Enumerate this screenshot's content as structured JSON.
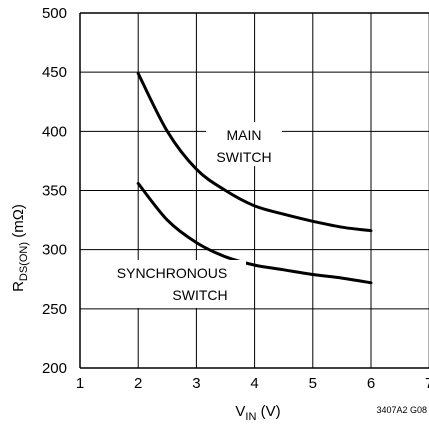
{
  "chart_data": {
    "type": "line",
    "xlabel": {
      "main": "V",
      "sub": "IN",
      "unit": " (V)"
    },
    "ylabel": {
      "main": "R",
      "sub": "DS(ON)",
      "unit": " (mΩ)"
    },
    "xlim": [
      1,
      7
    ],
    "ylim": [
      200,
      500
    ],
    "x_ticks": [
      1,
      2,
      3,
      4,
      5,
      6,
      7
    ],
    "y_ticks": [
      200,
      250,
      300,
      350,
      400,
      450,
      500
    ],
    "grid": true,
    "series": [
      {
        "name": "MAIN SWITCH",
        "x": [
          2,
          2.5,
          3,
          3.5,
          4,
          4.5,
          5,
          5.5,
          6
        ],
        "y": [
          449,
          400,
          368,
          350,
          337,
          330,
          324,
          319,
          316
        ]
      },
      {
        "name": "SYNCHRONOUS SWITCH",
        "x": [
          2,
          2.5,
          3,
          3.5,
          4,
          4.5,
          5,
          5.5,
          6
        ],
        "y": [
          356,
          325,
          306,
          294,
          287,
          283,
          279,
          276,
          272
        ]
      }
    ],
    "annotations": [
      {
        "lines": [
          "MAIN",
          "SWITCH"
        ]
      },
      {
        "lines": [
          "SYNCHRONOUS",
          "SWITCH"
        ]
      }
    ],
    "figure_id": "3407A2 G08"
  }
}
